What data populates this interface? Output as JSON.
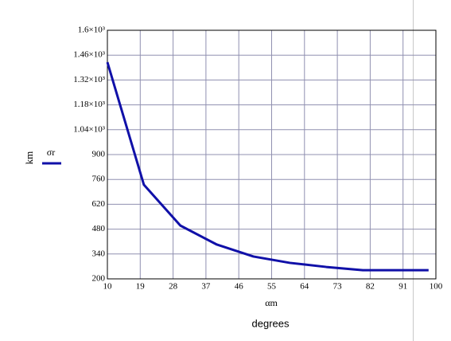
{
  "chart_data": {
    "type": "line",
    "x": [
      10,
      20,
      30,
      40,
      50,
      60,
      70,
      80,
      90,
      98
    ],
    "series": [
      {
        "name": "σr",
        "color": "#1010a8",
        "values": [
          1420,
          730,
          500,
          393,
          326,
          290,
          267,
          249,
          249,
          249
        ]
      }
    ],
    "xlabel": "αm",
    "xunit_label": "degrees",
    "ylabel": "km",
    "xlim": [
      10,
      100
    ],
    "xticks": [
      10,
      19,
      28,
      37,
      46,
      55,
      64,
      73,
      82,
      91,
      100
    ],
    "ylim": [
      200,
      1600
    ],
    "yticks": [
      200,
      340,
      480,
      620,
      760,
      900,
      {
        "value": 1040,
        "label": "1.04×10³"
      },
      {
        "value": 1180,
        "label": "1.18×10³"
      },
      {
        "value": 1320,
        "label": "1.32×10³"
      },
      {
        "value": 1460,
        "label": "1.46×10³"
      },
      {
        "value": 1600,
        "label": "1.6×10³"
      }
    ],
    "grid": true
  }
}
